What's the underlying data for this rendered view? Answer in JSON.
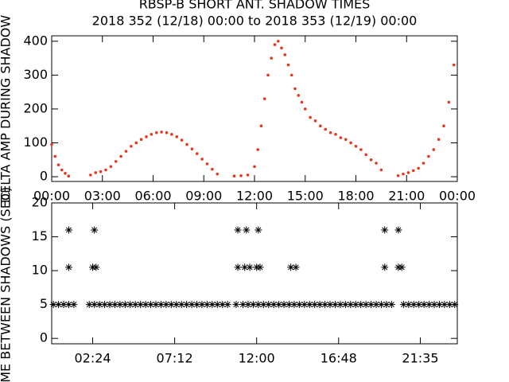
{
  "chart_data": [
    {
      "type": "scatter",
      "title": "RBSP-B SHORT ANT. SHADOW TIMES",
      "subtitle": "2018 352 (12/18) 00:00 to 2018 353 (12/19) 00:00",
      "y_label": "DELTA AMP DURING SHADOW",
      "color": "#e8361c",
      "x": [
        0,
        0.2,
        0.4,
        0.6,
        0.8,
        1.0,
        2.3,
        2.6,
        2.9,
        3.2,
        3.5,
        3.8,
        4.1,
        4.4,
        4.7,
        5.0,
        5.3,
        5.6,
        5.9,
        6.2,
        6.5,
        6.8,
        7.1,
        7.4,
        7.7,
        8.0,
        8.3,
        8.6,
        8.9,
        9.2,
        9.5,
        9.8,
        10.8,
        11.2,
        11.6,
        12.0,
        12.2,
        12.4,
        12.6,
        12.8,
        13.0,
        13.2,
        13.4,
        13.6,
        13.8,
        14.0,
        14.2,
        14.4,
        14.6,
        14.8,
        15.0,
        15.3,
        15.6,
        15.9,
        16.2,
        16.5,
        16.8,
        17.1,
        17.4,
        17.7,
        18.0,
        18.3,
        18.6,
        18.9,
        19.2,
        19.5,
        20.5,
        20.8,
        21.1,
        21.4,
        21.7,
        22.0,
        22.3,
        22.6,
        22.9,
        23.2,
        23.5,
        23.8
      ],
      "values": [
        95,
        60,
        35,
        20,
        10,
        2,
        5,
        12,
        15,
        20,
        30,
        45,
        60,
        75,
        90,
        100,
        110,
        118,
        125,
        130,
        132,
        130,
        125,
        118,
        108,
        95,
        82,
        68,
        52,
        38,
        22,
        8,
        2,
        3,
        5,
        30,
        80,
        150,
        230,
        300,
        350,
        390,
        400,
        380,
        360,
        330,
        300,
        260,
        240,
        220,
        200,
        175,
        165,
        150,
        140,
        130,
        125,
        115,
        110,
        100,
        90,
        80,
        65,
        50,
        40,
        20,
        3,
        8,
        12,
        18,
        25,
        40,
        60,
        80,
        110,
        150,
        220,
        330
      ],
      "xlim": [
        0,
        24
      ],
      "ylim": [
        -14,
        416
      ],
      "xticks": [
        {
          "value": 0,
          "label": "00:00"
        },
        {
          "value": 3,
          "label": "03:00"
        },
        {
          "value": 6,
          "label": "06:00"
        },
        {
          "value": 9,
          "label": "09:00"
        },
        {
          "value": 12,
          "label": "12:00"
        },
        {
          "value": 15,
          "label": "15:00"
        },
        {
          "value": 18,
          "label": "18:00"
        },
        {
          "value": 21,
          "label": "21:00"
        },
        {
          "value": 24,
          "label": "00:00"
        }
      ],
      "yticks": [
        0,
        100,
        200,
        300,
        400
      ]
    },
    {
      "type": "scatter",
      "y_label": "TIME BETWEEN SHADOWS (SEC)",
      "color": "#000000",
      "x": [
        0.1,
        0.4,
        0.7,
        1.0,
        1.3,
        2.2,
        2.5,
        2.8,
        3.1,
        3.4,
        3.7,
        4.0,
        4.3,
        4.6,
        4.9,
        5.2,
        5.5,
        5.8,
        6.1,
        6.4,
        6.7,
        7.0,
        7.3,
        7.6,
        7.9,
        8.2,
        8.5,
        8.8,
        9.1,
        9.4,
        9.7,
        10.0,
        10.3,
        10.8,
        11.2,
        11.5,
        11.8,
        12.1,
        12.4,
        12.7,
        13.0,
        13.3,
        13.6,
        13.9,
        14.2,
        14.5,
        14.8,
        15.1,
        15.4,
        15.7,
        16.0,
        16.3,
        16.6,
        16.9,
        17.2,
        17.5,
        17.8,
        18.1,
        18.4,
        18.7,
        19.0,
        19.3,
        19.6,
        19.9,
        20.6,
        20.9,
        21.2,
        21.5,
        21.8,
        22.1,
        22.4,
        22.7,
        23.0,
        23.3,
        23.6,
        1.0,
        2.5,
        10.9,
        11.4,
        12.1,
        19.5,
        20.3,
        1.0,
        2.4,
        2.6,
        10.9,
        11.3,
        11.6,
        12.0,
        12.2,
        14.0,
        14.3,
        19.5,
        20.3,
        20.5
      ],
      "values": [
        5,
        5,
        5,
        5,
        5,
        5,
        5,
        5,
        5,
        5,
        5,
        5,
        5,
        5,
        5,
        5,
        5,
        5,
        5,
        5,
        5,
        5,
        5,
        5,
        5,
        5,
        5,
        5,
        5,
        5,
        5,
        5,
        5,
        5,
        5,
        5,
        5,
        5,
        5,
        5,
        5,
        5,
        5,
        5,
        5,
        5,
        5,
        5,
        5,
        5,
        5,
        5,
        5,
        5,
        5,
        5,
        5,
        5,
        5,
        5,
        5,
        5,
        5,
        5,
        5,
        5,
        5,
        5,
        5,
        5,
        5,
        5,
        5,
        5,
        5,
        16,
        16,
        16,
        16,
        16,
        16,
        16,
        10.5,
        10.5,
        10.5,
        10.5,
        10.5,
        10.5,
        10.5,
        10.5,
        10.5,
        10.5,
        10.5,
        10.5,
        10.5
      ],
      "xlim": [
        0,
        23.75
      ],
      "ylim": [
        -0.8,
        20
      ],
      "xticks": [
        {
          "value": 2.4,
          "label": "02:24"
        },
        {
          "value": 7.2,
          "label": "07:12"
        },
        {
          "value": 12,
          "label": "12:00"
        },
        {
          "value": 16.8,
          "label": "16:48"
        },
        {
          "value": 21.583,
          "label": "21:35"
        }
      ],
      "yticks": [
        0,
        5,
        10,
        15,
        20
      ]
    }
  ]
}
